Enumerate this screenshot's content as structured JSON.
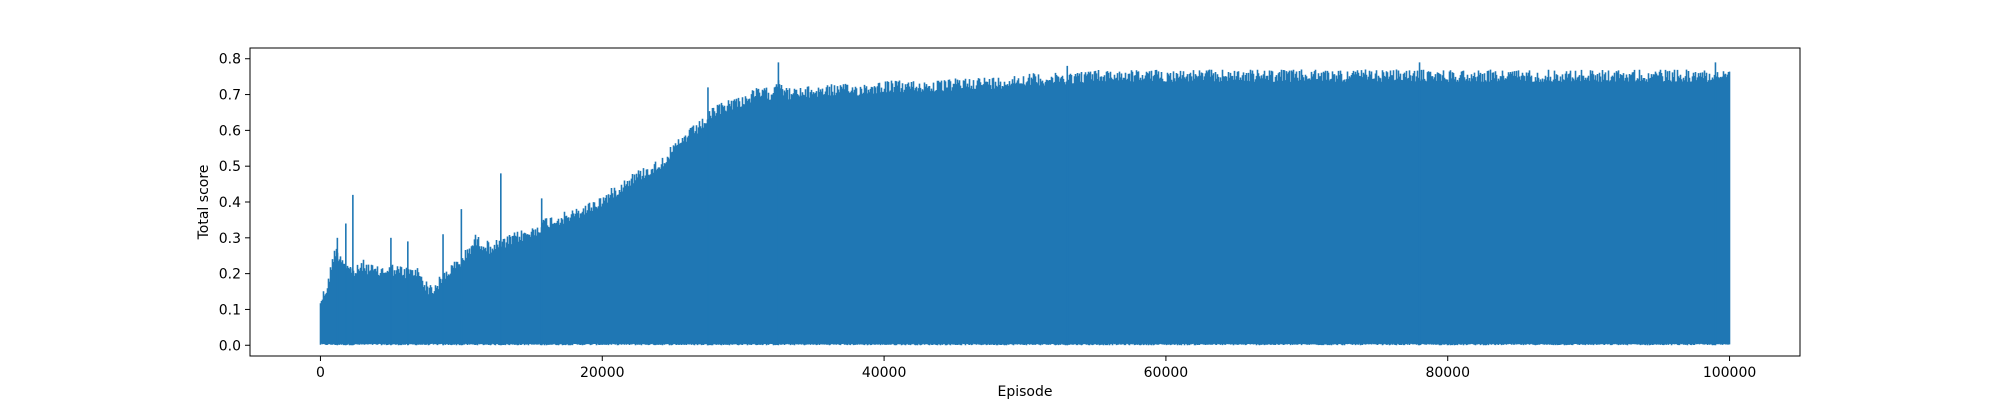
{
  "chart_data": {
    "type": "area",
    "title": "",
    "xlabel": "Episode",
    "ylabel": "Total score",
    "xlim": [
      -5000,
      105000
    ],
    "ylim": [
      -0.03,
      0.83
    ],
    "xticks": [
      0,
      20000,
      40000,
      60000,
      80000,
      100000
    ],
    "xtick_labels": [
      "0",
      "20000",
      "40000",
      "60000",
      "80000",
      "100000"
    ],
    "yticks": [
      0.0,
      0.1,
      0.2,
      0.3,
      0.4,
      0.5,
      0.6,
      0.7,
      0.8
    ],
    "ytick_labels": [
      "0.0",
      "0.1",
      "0.2",
      "0.3",
      "0.4",
      "0.5",
      "0.6",
      "0.7",
      "0.8"
    ],
    "grid": false,
    "series": [
      {
        "color": "#1f77b4",
        "description": "per-episode score; dense oscillation between ~0 and the upper envelope",
        "lower_envelope": 0.0,
        "upper_envelope_x": [
          0,
          500,
          1000,
          1500,
          2000,
          2500,
          3000,
          4000,
          5000,
          6000,
          7000,
          7500,
          8000,
          9000,
          10000,
          11000,
          12000,
          13000,
          14000,
          15000,
          16000,
          17000,
          18000,
          19000,
          20000,
          21000,
          22000,
          23000,
          24000,
          25000,
          26000,
          27000,
          28000,
          29000,
          30000,
          31000,
          32000,
          32500,
          33000,
          34000,
          36000,
          38000,
          40000,
          42000,
          44000,
          46000,
          48000,
          50000,
          52000,
          55000,
          60000,
          65000,
          70000,
          75000,
          80000,
          85000,
          90000,
          95000,
          100000
        ],
        "upper_envelope_y": [
          0.14,
          0.18,
          0.28,
          0.26,
          0.23,
          0.22,
          0.24,
          0.22,
          0.23,
          0.22,
          0.22,
          0.18,
          0.17,
          0.22,
          0.25,
          0.31,
          0.29,
          0.3,
          0.32,
          0.33,
          0.36,
          0.37,
          0.38,
          0.4,
          0.42,
          0.45,
          0.48,
          0.5,
          0.52,
          0.56,
          0.6,
          0.63,
          0.67,
          0.69,
          0.7,
          0.72,
          0.72,
          0.76,
          0.72,
          0.72,
          0.73,
          0.73,
          0.74,
          0.74,
          0.74,
          0.75,
          0.75,
          0.76,
          0.76,
          0.77,
          0.77,
          0.77,
          0.77,
          0.77,
          0.77,
          0.77,
          0.77,
          0.77,
          0.77
        ],
        "spikes": [
          {
            "x": 1200,
            "y": 0.3
          },
          {
            "x": 1800,
            "y": 0.34
          },
          {
            "x": 2300,
            "y": 0.42
          },
          {
            "x": 5000,
            "y": 0.3
          },
          {
            "x": 6200,
            "y": 0.29
          },
          {
            "x": 8700,
            "y": 0.31
          },
          {
            "x": 10000,
            "y": 0.38
          },
          {
            "x": 12800,
            "y": 0.48
          },
          {
            "x": 15700,
            "y": 0.41
          },
          {
            "x": 27500,
            "y": 0.72
          },
          {
            "x": 32500,
            "y": 0.79
          },
          {
            "x": 53000,
            "y": 0.78
          },
          {
            "x": 78000,
            "y": 0.79
          },
          {
            "x": 99000,
            "y": 0.79
          }
        ]
      }
    ]
  }
}
